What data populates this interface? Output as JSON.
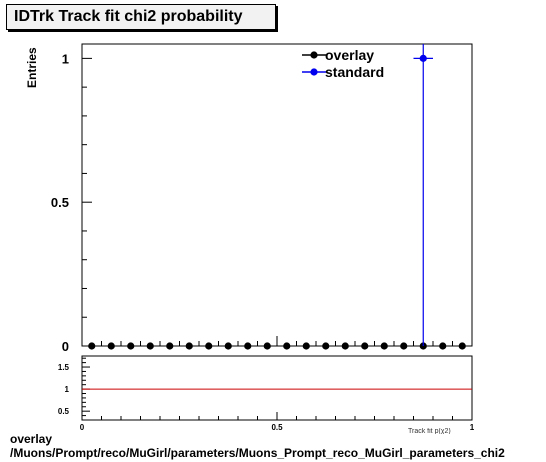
{
  "title": "IDTrk Track fit chi2 probability",
  "ylabel": "Entries",
  "xlabel": "Track fit p(χ2)",
  "footer": {
    "line1": "overlay",
    "line2": "/Muons/Prompt/reco/MuGirl/parameters/Muons_Prompt_reco_MuGirl_parameters_chi2"
  },
  "colors": {
    "overlay": "#000000",
    "standard": "#0000ee",
    "ratio_line": "#cc0000"
  },
  "chart_data": [
    {
      "type": "scatter",
      "title": "IDTrk Track fit chi2 probability",
      "xlabel": "Track fit p(χ2)",
      "ylabel": "Entries",
      "xlim": [
        0,
        1
      ],
      "ylim": [
        0,
        1.05
      ],
      "y_ticks": [
        "0",
        "0.5",
        "1"
      ],
      "legend": {
        "placement": "top-right",
        "entries": [
          "overlay",
          "standard"
        ]
      },
      "series": [
        {
          "name": "overlay",
          "x": [
            0.025,
            0.075,
            0.125,
            0.175,
            0.225,
            0.275,
            0.325,
            0.375,
            0.425,
            0.475,
            0.525,
            0.575,
            0.625,
            0.675,
            0.725,
            0.775,
            0.825,
            0.875,
            0.925,
            0.975
          ],
          "y": [
            0,
            0,
            0,
            0,
            0,
            0,
            0,
            0,
            0,
            0,
            0,
            0,
            0,
            0,
            0,
            0,
            0,
            0,
            0,
            0
          ]
        },
        {
          "name": "standard",
          "x": [
            0.875
          ],
          "y": [
            1
          ],
          "yerr": [
            1
          ],
          "xerr": [
            0.025
          ]
        }
      ]
    },
    {
      "type": "line",
      "xlim": [
        0,
        1
      ],
      "ylim": [
        0.3,
        1.75
      ],
      "x_ticks": [
        "0",
        "0.5",
        "1"
      ],
      "y_ticks": [
        "0.5",
        "1",
        "1.5"
      ],
      "reference": 1
    }
  ]
}
